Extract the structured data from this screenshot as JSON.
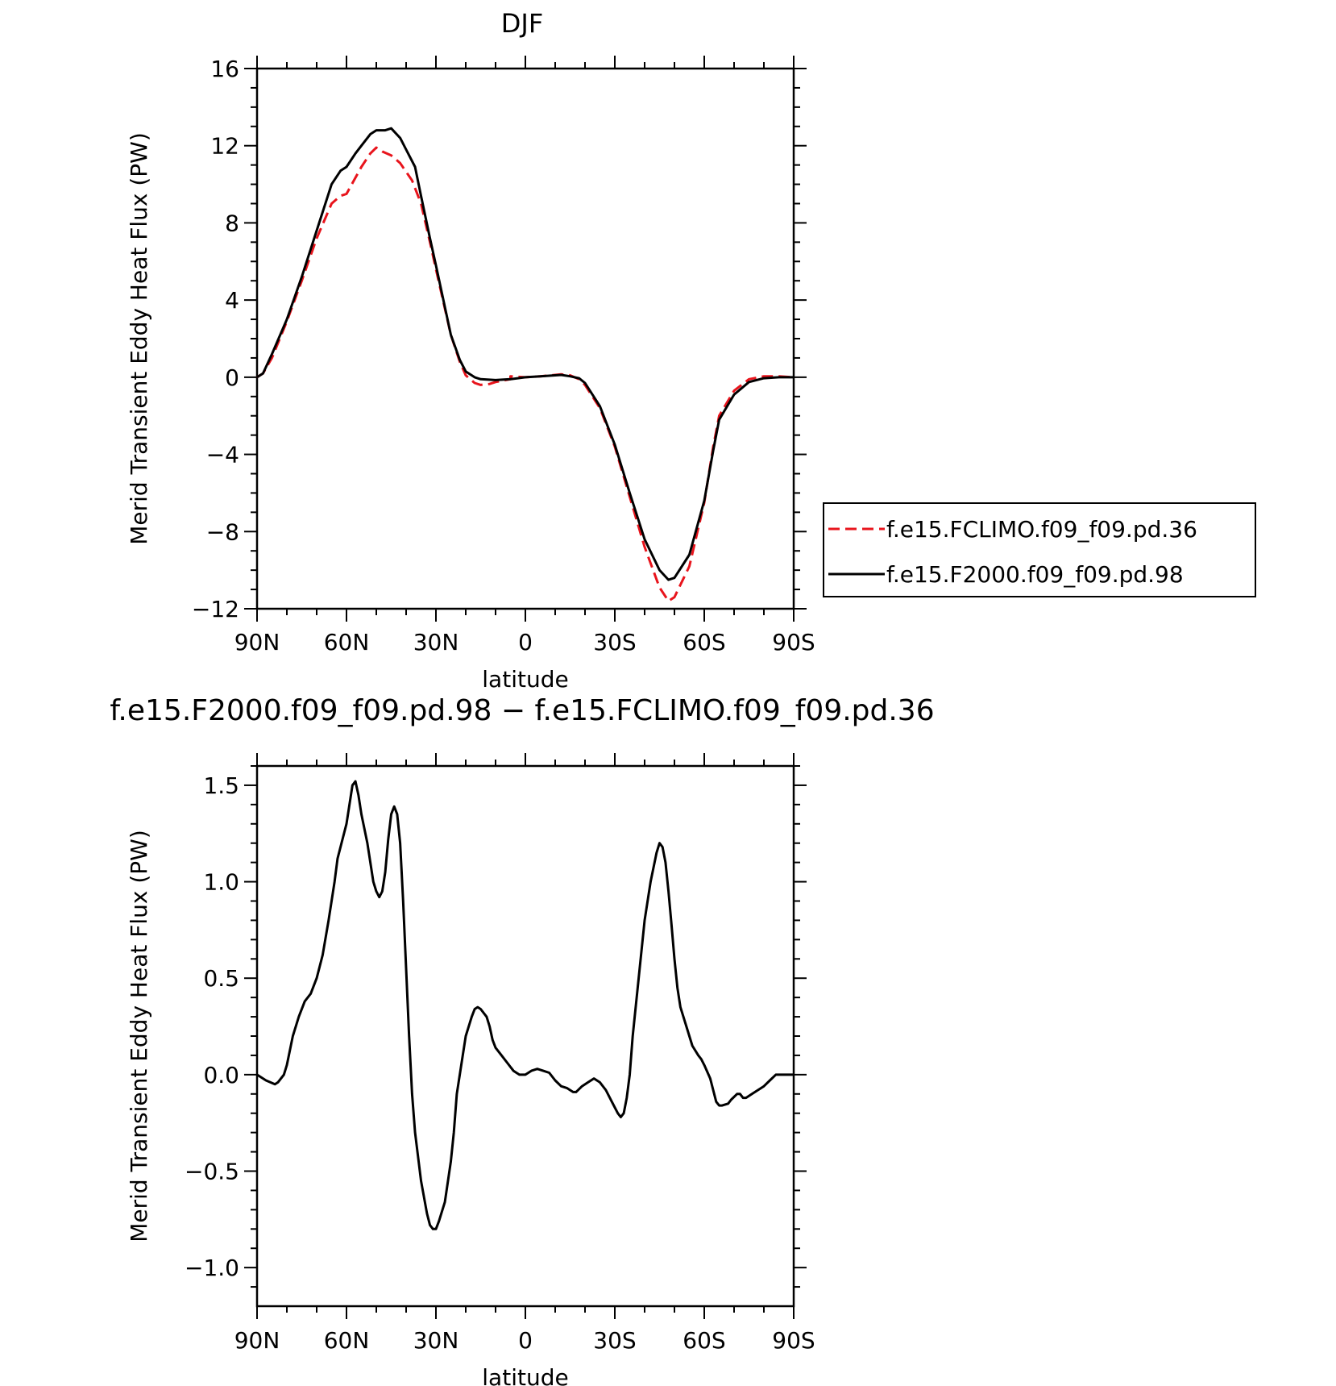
{
  "chart_data": [
    {
      "type": "line",
      "title": "DJF",
      "xlabel": "latitude",
      "ylabel": "Merid Transient Eddy Heat Flux (PW)",
      "x_ticks": [
        "90N",
        "60N",
        "30N",
        "0",
        "30S",
        "60S",
        "90S"
      ],
      "y_ticks": [
        "16",
        "12",
        "8",
        "4",
        "0",
        "−4",
        "−8",
        "−12"
      ],
      "xlim": [
        90,
        -90
      ],
      "ylim": [
        -12,
        16
      ],
      "legend_position": "right",
      "series": [
        {
          "name": "f.e15.FCLIMO.f09_f09.pd.36",
          "color": "#e8141c",
          "dash": "dashed",
          "points": [
            [
              90,
              0
            ],
            [
              88,
              0.2
            ],
            [
              85,
              1.0
            ],
            [
              80,
              2.9
            ],
            [
              75,
              5.0
            ],
            [
              70,
              7.2
            ],
            [
              65,
              9.0
            ],
            [
              62,
              9.4
            ],
            [
              60,
              9.5
            ],
            [
              55,
              10.9
            ],
            [
              52,
              11.6
            ],
            [
              50,
              11.9
            ],
            [
              48,
              11.7
            ],
            [
              45,
              11.5
            ],
            [
              42,
              11.1
            ],
            [
              38,
              10.2
            ],
            [
              35,
              9.0
            ],
            [
              32,
              7.0
            ],
            [
              30,
              5.6
            ],
            [
              25,
              2.2
            ],
            [
              22,
              0.8
            ],
            [
              20,
              0.1
            ],
            [
              17,
              -0.3
            ],
            [
              15,
              -0.4
            ],
            [
              12,
              -0.35
            ],
            [
              10,
              -0.25
            ],
            [
              5,
              -0.1
            ],
            [
              0,
              0
            ],
            [
              5,
              0.05
            ],
            [
              -5,
              0.05
            ],
            [
              -10,
              0.12
            ],
            [
              -12,
              0.15
            ],
            [
              -15,
              0.1
            ],
            [
              -18,
              -0.1
            ],
            [
              -20,
              -0.4
            ],
            [
              -25,
              -1.6
            ],
            [
              -30,
              -3.6
            ],
            [
              -35,
              -6.2
            ],
            [
              -40,
              -8.8
            ],
            [
              -45,
              -10.9
            ],
            [
              -48,
              -11.6
            ],
            [
              -50,
              -11.4
            ],
            [
              -55,
              -9.8
            ],
            [
              -60,
              -6.5
            ],
            [
              -63,
              -3.6
            ],
            [
              -65,
              -2.0
            ],
            [
              -70,
              -0.7
            ],
            [
              -75,
              -0.1
            ],
            [
              -80,
              0.05
            ],
            [
              -85,
              0.05
            ],
            [
              -90,
              0
            ]
          ]
        },
        {
          "name": "f.e15.F2000.f09_f09.pd.98",
          "color": "#000000",
          "dash": "solid",
          "points": [
            [
              90,
              0
            ],
            [
              88,
              0.2
            ],
            [
              85,
              1.2
            ],
            [
              80,
              3.0
            ],
            [
              75,
              5.2
            ],
            [
              70,
              7.6
            ],
            [
              65,
              10.0
            ],
            [
              62,
              10.7
            ],
            [
              60,
              10.9
            ],
            [
              57,
              11.6
            ],
            [
              55,
              12.0
            ],
            [
              52,
              12.6
            ],
            [
              50,
              12.8
            ],
            [
              47,
              12.8
            ],
            [
              45,
              12.9
            ],
            [
              42,
              12.4
            ],
            [
              40,
              11.8
            ],
            [
              37,
              10.9
            ],
            [
              35,
              9.4
            ],
            [
              32,
              7.2
            ],
            [
              30,
              5.8
            ],
            [
              25,
              2.2
            ],
            [
              22,
              0.9
            ],
            [
              20,
              0.3
            ],
            [
              17,
              0
            ],
            [
              15,
              -0.1
            ],
            [
              10,
              -0.15
            ],
            [
              5,
              -0.1
            ],
            [
              0,
              0
            ],
            [
              -5,
              0.05
            ],
            [
              -10,
              0.1
            ],
            [
              -12,
              0.12
            ],
            [
              -15,
              0.05
            ],
            [
              -18,
              -0.05
            ],
            [
              -20,
              -0.3
            ],
            [
              -25,
              -1.5
            ],
            [
              -30,
              -3.5
            ],
            [
              -35,
              -6.0
            ],
            [
              -40,
              -8.4
            ],
            [
              -45,
              -10.0
            ],
            [
              -48,
              -10.5
            ],
            [
              -50,
              -10.4
            ],
            [
              -55,
              -9.2
            ],
            [
              -60,
              -6.4
            ],
            [
              -63,
              -3.8
            ],
            [
              -65,
              -2.2
            ],
            [
              -70,
              -0.9
            ],
            [
              -75,
              -0.25
            ],
            [
              -80,
              -0.05
            ],
            [
              -85,
              0
            ],
            [
              -90,
              0
            ]
          ]
        }
      ]
    },
    {
      "type": "line",
      "title": "f.e15.F2000.f09_f09.pd.98 − f.e15.FCLIMO.f09_f09.pd.36",
      "xlabel": "latitude",
      "ylabel": "Merid Transient Eddy Heat Flux (PW)",
      "x_ticks": [
        "90N",
        "60N",
        "30N",
        "0",
        "30S",
        "60S",
        "90S"
      ],
      "y_ticks": [
        "1.5",
        "1.0",
        "0.5",
        "0.0",
        "−0.5",
        "−1.0"
      ],
      "xlim": [
        90,
        -90
      ],
      "ylim": [
        -1.2,
        1.6
      ],
      "series": [
        {
          "color": "#000000",
          "dash": "solid",
          "points": [
            [
              90,
              0
            ],
            [
              87,
              -0.03
            ],
            [
              84,
              -0.05
            ],
            [
              83,
              -0.04
            ],
            [
              81,
              0.0
            ],
            [
              80,
              0.05
            ],
            [
              78,
              0.2
            ],
            [
              76,
              0.3
            ],
            [
              74,
              0.38
            ],
            [
              72,
              0.42
            ],
            [
              70,
              0.5
            ],
            [
              68,
              0.62
            ],
            [
              66,
              0.8
            ],
            [
              64,
              1.0
            ],
            [
              63,
              1.12
            ],
            [
              61,
              1.24
            ],
            [
              60,
              1.3
            ],
            [
              59,
              1.4
            ],
            [
              58,
              1.5
            ],
            [
              57,
              1.52
            ],
            [
              56,
              1.45
            ],
            [
              55,
              1.35
            ],
            [
              53,
              1.2
            ],
            [
              52,
              1.1
            ],
            [
              51,
              1.0
            ],
            [
              50,
              0.95
            ],
            [
              49,
              0.92
            ],
            [
              48,
              0.95
            ],
            [
              47,
              1.05
            ],
            [
              46,
              1.22
            ],
            [
              45,
              1.35
            ],
            [
              44,
              1.39
            ],
            [
              43,
              1.35
            ],
            [
              42,
              1.2
            ],
            [
              41,
              0.9
            ],
            [
              40,
              0.55
            ],
            [
              39,
              0.2
            ],
            [
              38,
              -0.1
            ],
            [
              37,
              -0.3
            ],
            [
              35,
              -0.55
            ],
            [
              33,
              -0.72
            ],
            [
              32,
              -0.78
            ],
            [
              31,
              -0.8
            ],
            [
              30,
              -0.8
            ],
            [
              29,
              -0.76
            ],
            [
              27,
              -0.66
            ],
            [
              25,
              -0.45
            ],
            [
              24,
              -0.3
            ],
            [
              23,
              -0.1
            ],
            [
              21,
              0.1
            ],
            [
              20,
              0.2
            ],
            [
              18,
              0.3
            ],
            [
              17,
              0.34
            ],
            [
              16,
              0.35
            ],
            [
              15,
              0.34
            ],
            [
              13,
              0.3
            ],
            [
              12,
              0.25
            ],
            [
              11,
              0.18
            ],
            [
              10,
              0.14
            ],
            [
              8,
              0.1
            ],
            [
              6,
              0.06
            ],
            [
              4,
              0.02
            ],
            [
              2,
              0.0
            ],
            [
              0,
              0.0
            ],
            [
              -2,
              0.02
            ],
            [
              -4,
              0.03
            ],
            [
              -6,
              0.02
            ],
            [
              -8,
              0.01
            ],
            [
              -10,
              -0.03
            ],
            [
              -12,
              -0.06
            ],
            [
              -14,
              -0.07
            ],
            [
              -16,
              -0.09
            ],
            [
              -17,
              -0.09
            ],
            [
              -19,
              -0.06
            ],
            [
              -21,
              -0.04
            ],
            [
              -22,
              -0.03
            ],
            [
              -23,
              -0.02
            ],
            [
              -25,
              -0.04
            ],
            [
              -27,
              -0.08
            ],
            [
              -29,
              -0.14
            ],
            [
              -31,
              -0.2
            ],
            [
              -32,
              -0.22
            ],
            [
              -33,
              -0.2
            ],
            [
              -34,
              -0.12
            ],
            [
              -35,
              0.0
            ],
            [
              -36,
              0.2
            ],
            [
              -38,
              0.5
            ],
            [
              -40,
              0.8
            ],
            [
              -42,
              1.0
            ],
            [
              -44,
              1.15
            ],
            [
              -45,
              1.2
            ],
            [
              -46,
              1.18
            ],
            [
              -47,
              1.1
            ],
            [
              -48,
              0.95
            ],
            [
              -49,
              0.78
            ],
            [
              -50,
              0.6
            ],
            [
              -51,
              0.45
            ],
            [
              -52,
              0.35
            ],
            [
              -54,
              0.25
            ],
            [
              -56,
              0.15
            ],
            [
              -58,
              0.1
            ],
            [
              -59,
              0.08
            ],
            [
              -60,
              0.05
            ],
            [
              -62,
              -0.02
            ],
            [
              -63,
              -0.08
            ],
            [
              -64,
              -0.14
            ],
            [
              -65,
              -0.16
            ],
            [
              -66,
              -0.16
            ],
            [
              -68,
              -0.15
            ],
            [
              -69,
              -0.13
            ],
            [
              -71,
              -0.1
            ],
            [
              -72,
              -0.1
            ],
            [
              -73,
              -0.12
            ],
            [
              -74,
              -0.12
            ],
            [
              -76,
              -0.1
            ],
            [
              -78,
              -0.08
            ],
            [
              -80,
              -0.06
            ],
            [
              -82,
              -0.03
            ],
            [
              -84,
              0.0
            ],
            [
              -86,
              0.0
            ],
            [
              -90,
              0.0
            ]
          ]
        }
      ]
    }
  ]
}
